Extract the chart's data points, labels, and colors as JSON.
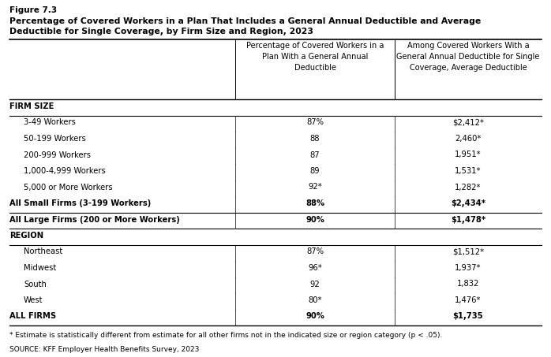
{
  "figure_label": "Figure 7.3",
  "title_line1": "Percentage of Covered Workers in a Plan That Includes a General Annual Deductible and Average",
  "title_line2": "Deductible for Single Coverage, by Firm Size and Region, 2023",
  "col1_header": "Percentage of Covered Workers in a\nPlan With a General Annual\nDeductible",
  "col2_header": "Among Covered Workers With a\nGeneral Annual Deductible for Single\nCoverage, Average Deductible",
  "rows": [
    {
      "label": "FIRM SIZE",
      "col1": "",
      "col2": "",
      "bold": true,
      "indent": false,
      "section_header": true
    },
    {
      "label": "3-49 Workers",
      "col1": "87%",
      "col2": "$2,412*",
      "bold": false,
      "indent": true
    },
    {
      "label": "50-199 Workers",
      "col1": "88",
      "col2": "2,460*",
      "bold": false,
      "indent": true
    },
    {
      "label": "200-999 Workers",
      "col1": "87",
      "col2": "1,951*",
      "bold": false,
      "indent": true
    },
    {
      "label": "1,000-4,999 Workers",
      "col1": "89",
      "col2": "1,531*",
      "bold": false,
      "indent": true
    },
    {
      "label": "5,000 or More Workers",
      "col1": "92*",
      "col2": "1,282*",
      "bold": false,
      "indent": true
    },
    {
      "label": "All Small Firms (3-199 Workers)",
      "col1": "88%",
      "col2": "$2,434*",
      "bold": true,
      "indent": false
    },
    {
      "label": "All Large Firms (200 or More Workers)",
      "col1": "90%",
      "col2": "$1,478*",
      "bold": true,
      "indent": false
    },
    {
      "label": "REGION",
      "col1": "",
      "col2": "",
      "bold": true,
      "indent": false,
      "section_header": true
    },
    {
      "label": "Northeast",
      "col1": "87%",
      "col2": "$1,512*",
      "bold": false,
      "indent": true
    },
    {
      "label": "Midwest",
      "col1": "96*",
      "col2": "1,937*",
      "bold": false,
      "indent": true
    },
    {
      "label": "South",
      "col1": "92",
      "col2": "1,832",
      "bold": false,
      "indent": true
    },
    {
      "label": "West",
      "col1": "80*",
      "col2": "1,476*",
      "bold": false,
      "indent": true
    },
    {
      "label": "ALL FIRMS",
      "col1": "90%",
      "col2": "$1,735",
      "bold": true,
      "indent": false
    }
  ],
  "footnote": "* Estimate is statistically different from estimate for all other firms not in the indicated size or region category (p < .05).",
  "source": "SOURCE: KFF Employer Health Benefits Survey, 2023",
  "bg_color": "#ffffff",
  "text_color": "#000000"
}
